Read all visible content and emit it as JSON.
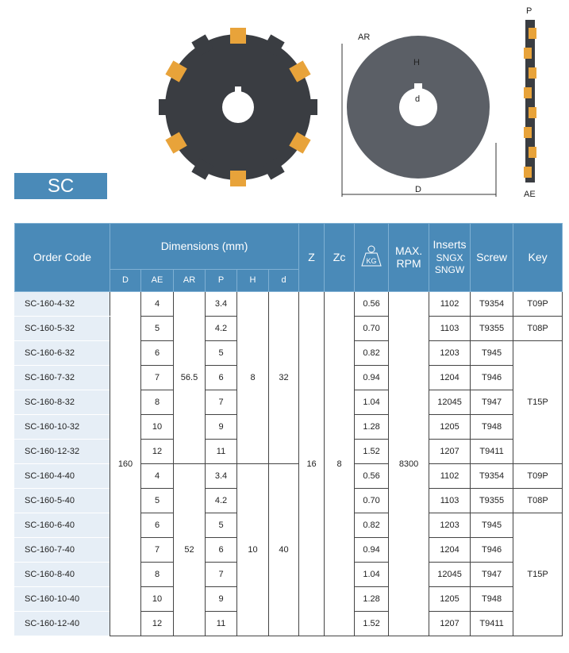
{
  "series_label": "SC",
  "drawing_labels": {
    "ar": "AR",
    "h": "H",
    "d_small": "d",
    "d_large": "D",
    "p": "P",
    "ae": "AE"
  },
  "colors": {
    "header": "#4a8ab8",
    "code_bg": "#e6eef6",
    "insert": "#e8a33a",
    "body": "#3a3d42"
  },
  "header": {
    "order_code": "Order Code",
    "dimensions": "Dimensions (mm)",
    "dims": [
      "D",
      "AE",
      "AR",
      "P",
      "H",
      "d"
    ],
    "z": "Z",
    "zc": "Zc",
    "kg": "KG",
    "rpm": "MAX. RPM",
    "inserts": "Inserts",
    "inserts_types": "SNGX SNGW",
    "screw": "Screw",
    "key": "Key"
  },
  "rows": [
    [
      "SC-160-4-32",
      "160",
      "4",
      "56.5",
      "3.4",
      "8",
      "32",
      "16",
      "8",
      "0.56",
      "8300",
      "1102",
      "T9354",
      "T09P"
    ],
    [
      "SC-160-5-32",
      "160",
      "5",
      "56.5",
      "4.2",
      "8",
      "32",
      "16",
      "8",
      "0.70",
      "8300",
      "1103",
      "T9355",
      "T08P"
    ],
    [
      "SC-160-6-32",
      "160",
      "6",
      "56.5",
      "5",
      "8",
      "32",
      "16",
      "8",
      "0.82",
      "8300",
      "1203",
      "T945",
      "T15P"
    ],
    [
      "SC-160-7-32",
      "160",
      "7",
      "56.5",
      "6",
      "8",
      "32",
      "16",
      "8",
      "0.94",
      "8300",
      "1204",
      "T946",
      "T15P"
    ],
    [
      "SC-160-8-32",
      "160",
      "8",
      "56.5",
      "7",
      "8",
      "32",
      "16",
      "8",
      "1.04",
      "8300",
      "12045",
      "T947",
      "T15P"
    ],
    [
      "SC-160-10-32",
      "160",
      "10",
      "56.5",
      "9",
      "8",
      "32",
      "16",
      "8",
      "1.28",
      "8300",
      "1205",
      "T948",
      "T15P"
    ],
    [
      "SC-160-12-32",
      "160",
      "12",
      "56.5",
      "11",
      "8",
      "32",
      "16",
      "8",
      "1.52",
      "8300",
      "1207",
      "T9411",
      "T15P"
    ],
    [
      "SC-160-4-40",
      "160",
      "4",
      "52",
      "3.4",
      "10",
      "40",
      "16",
      "8",
      "0.56",
      "8300",
      "1102",
      "T9354",
      "T09P"
    ],
    [
      "SC-160-5-40",
      "160",
      "5",
      "52",
      "4.2",
      "10",
      "40",
      "16",
      "8",
      "0.70",
      "8300",
      "1103",
      "T9355",
      "T08P"
    ],
    [
      "SC-160-6-40",
      "160",
      "6",
      "52",
      "5",
      "10",
      "40",
      "16",
      "8",
      "0.82",
      "8300",
      "1203",
      "T945",
      "T15P"
    ],
    [
      "SC-160-7-40",
      "160",
      "7",
      "52",
      "6",
      "10",
      "40",
      "16",
      "8",
      "0.94",
      "8300",
      "1204",
      "T946",
      "T15P"
    ],
    [
      "SC-160-8-40",
      "160",
      "8",
      "52",
      "7",
      "10",
      "40",
      "16",
      "8",
      "1.04",
      "8300",
      "12045",
      "T947",
      "T15P"
    ],
    [
      "SC-160-10-40",
      "160",
      "10",
      "52",
      "9",
      "10",
      "40",
      "16",
      "8",
      "1.28",
      "8300",
      "1205",
      "T948",
      "T15P"
    ],
    [
      "SC-160-12-40",
      "160",
      "12",
      "52",
      "11",
      "10",
      "40",
      "16",
      "8",
      "1.52",
      "8300",
      "1207",
      "T9411",
      "T15P"
    ]
  ]
}
